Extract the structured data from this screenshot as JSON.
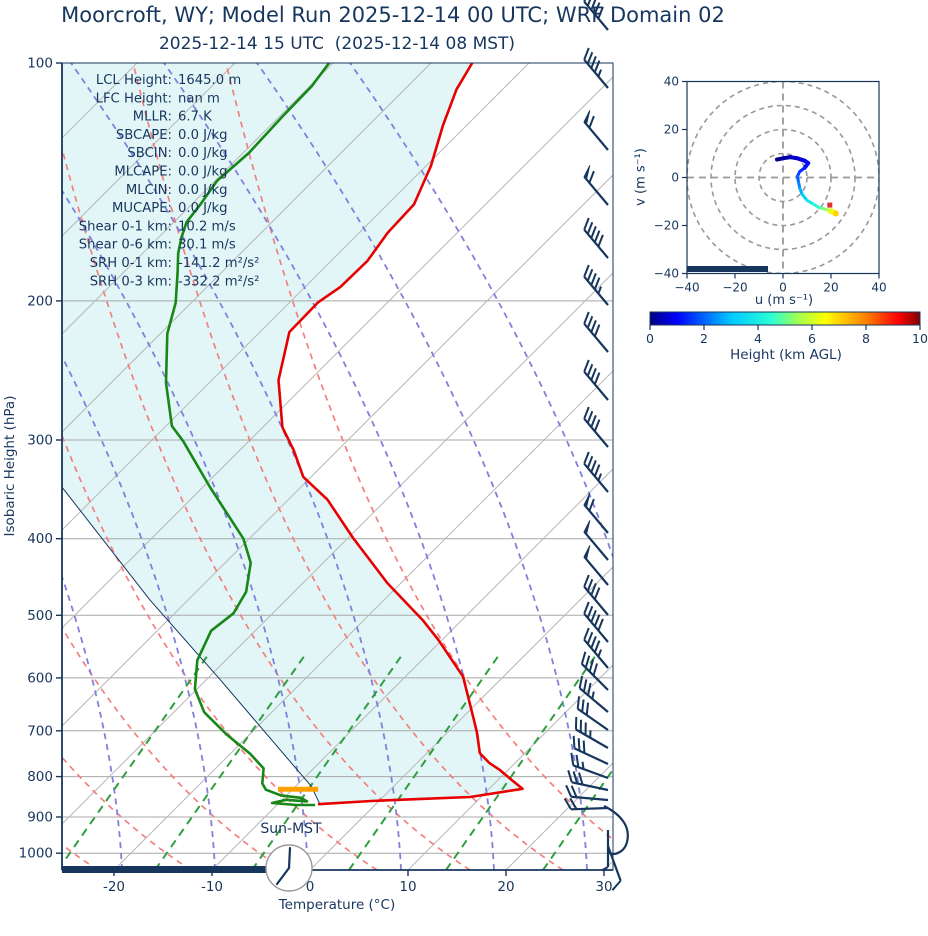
{
  "title": "Moorcroft, WY; Model Run 2025-12-14 00 UTC; WRF Domain 02",
  "subtitle": "2025-12-14 15 UTC  (2025-12-14 08 MST)",
  "colors": {
    "accent_navy": "#17365d",
    "temperature": "#e60000",
    "dewpoint": "#178717",
    "parcel": "#17365d",
    "cape_shade": "#e2f6f8",
    "dry_adiabat": "#f28080",
    "moist_adiabat": "#8080dd",
    "mixing_ratio": "#2f9e3f",
    "isotherm": "#b8b8b8",
    "grid": "#a8a8a8",
    "lcl_marker": "#ffa000",
    "hodo_grid": "#999999",
    "storm_marker": "#e03131"
  },
  "stats": [
    {
      "label": "LCL Height:",
      "value": "1645.0 m"
    },
    {
      "label": "LFC Height:",
      "value": "nan m"
    },
    {
      "label": "MLLR:",
      "value": "6.7 K"
    },
    {
      "label": "SBCAPE:",
      "value": "0.0 J/kg"
    },
    {
      "label": "SBCIN:",
      "value": "0.0 J/kg"
    },
    {
      "label": "MLCAPE:",
      "value": "0.0 J/kg"
    },
    {
      "label": "MLCIN:",
      "value": "0.0 J/kg"
    },
    {
      "label": "MUCAPE:",
      "value": "0.0 J/kg"
    },
    {
      "label": "Shear 0-1 km:",
      "value": "10.2 m/s"
    },
    {
      "label": "Shear 0-6 km:",
      "value": "30.1 m/s"
    },
    {
      "label": "SRH 0-1 km:",
      "value": "-141.2 m²/s²"
    },
    {
      "label": "SRH 0-3 km:",
      "value": "-332.2 m²/s²"
    }
  ],
  "skewt": {
    "ylabel": "Isobaric Height (hPa)",
    "xlabel": "Temperature (°C)",
    "sun_label": "Sun-MST",
    "x_ticks": [
      -20,
      -10,
      0,
      10,
      20,
      30
    ],
    "y_ticks": [
      100,
      200,
      300,
      400,
      500,
      600,
      700,
      800,
      900,
      1000
    ],
    "wind_barbs": [
      {
        "y": 30,
        "rot": -40,
        "pen": 0,
        "full": 5,
        "half": 0
      },
      {
        "y": 88,
        "rot": -40,
        "pen": 0,
        "full": 4,
        "half": 1
      },
      {
        "y": 150,
        "rot": -40,
        "pen": 1,
        "full": 1,
        "half": 0
      },
      {
        "y": 205,
        "rot": -40,
        "pen": 1,
        "full": 1,
        "half": 0
      },
      {
        "y": 258,
        "rot": -40,
        "pen": 0,
        "full": 5,
        "half": 0
      },
      {
        "y": 305,
        "rot": -40,
        "pen": 0,
        "full": 4,
        "half": 1
      },
      {
        "y": 352,
        "rot": -40,
        "pen": 0,
        "full": 4,
        "half": 0
      },
      {
        "y": 400,
        "rot": -40,
        "pen": 0,
        "full": 4,
        "half": 0
      },
      {
        "y": 447,
        "rot": -40,
        "pen": 0,
        "full": 4,
        "half": 0
      },
      {
        "y": 492,
        "rot": -40,
        "pen": 0,
        "full": 4,
        "half": 1
      },
      {
        "y": 533,
        "rot": -40,
        "pen": 1,
        "full": 1,
        "half": 0
      },
      {
        "y": 560,
        "rot": -40,
        "pen": 1,
        "full": 0,
        "half": 0
      },
      {
        "y": 585,
        "rot": -40,
        "pen": 1,
        "full": 0,
        "half": 0
      },
      {
        "y": 615,
        "rot": -40,
        "pen": 0,
        "full": 4,
        "half": 0
      },
      {
        "y": 642,
        "rot": -40,
        "pen": 0,
        "full": 5,
        "half": 0
      },
      {
        "y": 668,
        "rot": -40,
        "pen": 0,
        "full": 4,
        "half": 1
      },
      {
        "y": 690,
        "rot": -45,
        "pen": 0,
        "full": 4,
        "half": 0
      },
      {
        "y": 712,
        "rot": -50,
        "pen": 0,
        "full": 3,
        "half": 1
      },
      {
        "y": 730,
        "rot": -55,
        "pen": 0,
        "full": 3,
        "half": 0
      },
      {
        "y": 748,
        "rot": -60,
        "pen": 0,
        "full": 3,
        "half": 1
      },
      {
        "y": 764,
        "rot": -65,
        "pen": 0,
        "full": 3,
        "half": 0
      },
      {
        "y": 778,
        "rot": -70,
        "pen": 0,
        "full": 2,
        "half": 1
      },
      {
        "y": 790,
        "rot": -78,
        "pen": 0,
        "full": 3,
        "half": 0
      },
      {
        "y": 800,
        "rot": -85,
        "pen": 0,
        "full": 2,
        "half": 0
      },
      {
        "y": 808,
        "rot": -92,
        "pen": 0,
        "full": 2,
        "half": 0
      },
      {
        "y": 830,
        "rot": 180,
        "pen": 0,
        "full": 0,
        "half": 1
      },
      {
        "y": 846,
        "rot": 160,
        "pen": 0,
        "full": 1,
        "half": 0
      }
    ]
  },
  "hodograph": {
    "xlabel": "u (m s⁻¹)",
    "ylabel": "v (m s⁻¹)",
    "u_ticks": [
      -40,
      -20,
      0,
      20,
      40
    ],
    "v_ticks": [
      -40,
      -20,
      0,
      20,
      40
    ],
    "ring_radii": [
      10,
      20,
      30,
      40
    ]
  },
  "colorbar": {
    "label": "Height (km AGL)",
    "ticks": [
      0,
      2,
      4,
      6,
      8,
      10
    ],
    "range_km": [
      0,
      10
    ]
  },
  "chart_data": [
    {
      "id": "skewt-sounding",
      "type": "line",
      "title": "2025-12-14 15 UTC  (2025-12-14 08 MST)",
      "xlabel": "Temperature (°C)",
      "ylabel": "Isobaric Height (hPa)",
      "x_range_C": [
        -25,
        31
      ],
      "y_range_hPa": [
        100,
        1050
      ],
      "y_scale": "log",
      "skew_deg": 45,
      "lcl_marker": {
        "pressure_hPa": 830,
        "temp_range_C": [
          -11.5,
          -7.4
        ]
      },
      "series": [
        {
          "name": "temperature",
          "units": [
            "hPa",
            "degC"
          ],
          "points": [
            [
              100,
              -65.8
            ],
            [
              108,
              -64.7
            ],
            [
              120,
              -62.4
            ],
            [
              135,
              -59.5
            ],
            [
              151,
              -57.3
            ],
            [
              164,
              -57.1
            ],
            [
              178,
              -56.3
            ],
            [
              192,
              -56.4
            ],
            [
              201,
              -57.1
            ],
            [
              219,
              -57.0
            ],
            [
              252,
              -53.2
            ],
            [
              289,
              -48.0
            ],
            [
              309,
              -44.5
            ],
            [
              334,
              -40.8
            ],
            [
              357,
              -36.0
            ],
            [
              399,
              -29.5
            ],
            [
              455,
              -21.4
            ],
            [
              507,
              -14.0
            ],
            [
              537,
              -10.4
            ],
            [
              598,
              -4.1
            ],
            [
              678,
              1.4
            ],
            [
              705,
              3.1
            ],
            [
              747,
              5.4
            ],
            [
              769,
              7.4
            ],
            [
              785,
              9.2
            ],
            [
              808,
              11.4
            ],
            [
              829,
              13.4
            ],
            [
              849,
              8.9
            ],
            [
              853,
              5.0
            ],
            [
              859,
              -0.8
            ],
            [
              867,
              -5.9
            ]
          ]
        },
        {
          "name": "dewpoint",
          "units": [
            "hPa",
            "degC"
          ],
          "points": [
            [
              100,
              -80.4
            ],
            [
              107,
              -79.8
            ],
            [
              117,
              -79.7
            ],
            [
              130,
              -79.4
            ],
            [
              141,
              -79.8
            ],
            [
              151,
              -79.1
            ],
            [
              159,
              -78.7
            ],
            [
              166,
              -77.7
            ],
            [
              174,
              -76.4
            ],
            [
              184,
              -74.5
            ],
            [
              201,
              -71.6
            ],
            [
              220,
              -69.3
            ],
            [
              254,
              -64.4
            ],
            [
              288,
              -59.4
            ],
            [
              301,
              -56.7
            ],
            [
              344,
              -49.3
            ],
            [
              400,
              -40.6
            ],
            [
              429,
              -37.4
            ],
            [
              467,
              -34.9
            ],
            [
              497,
              -34.0
            ],
            [
              523,
              -34.5
            ],
            [
              570,
              -32.9
            ],
            [
              620,
              -30.2
            ],
            [
              663,
              -26.9
            ],
            [
              707,
              -22.4
            ],
            [
              748,
              -18.0
            ],
            [
              781,
              -15.1
            ],
            [
              816,
              -13.7
            ],
            [
              831,
              -12.7
            ],
            [
              845,
              -10.6
            ],
            [
              851,
              -8.3
            ],
            [
              860,
              -7.3
            ],
            [
              856,
              -9.6
            ],
            [
              864,
              -10.7
            ],
            [
              869,
              -8.0
            ],
            [
              869,
              -6.1
            ]
          ]
        },
        {
          "name": "parcel",
          "units": [
            "hPa",
            "degC"
          ],
          "points": [
            [
              344,
              -64.4
            ],
            [
              478,
              -43.9
            ],
            [
              603,
              -28.6
            ],
            [
              823,
              -8.4
            ],
            [
              867,
              -5.7
            ]
          ]
        }
      ]
    },
    {
      "id": "hodograph",
      "type": "line",
      "xlabel": "u (m s⁻¹)",
      "ylabel": "v (m s⁻¹)",
      "x_range": [
        -40,
        40
      ],
      "y_range": [
        -40,
        40
      ],
      "color_by": "Height (km AGL)",
      "series": [
        {
          "name": "wind-trace",
          "points_uvh": [
            [
              -2.5,
              7.5,
              0
            ],
            [
              0,
              8,
              0.2
            ],
            [
              3,
              8.5,
              0.4
            ],
            [
              6,
              8,
              0.6
            ],
            [
              9,
              7,
              0.8
            ],
            [
              10.5,
              6,
              1.0
            ],
            [
              9,
              4,
              1.2
            ],
            [
              7,
              2.5,
              1.5
            ],
            [
              6,
              0.5,
              1.8
            ],
            [
              6.5,
              -2,
              2.1
            ],
            [
              7,
              -4.5,
              2.5
            ],
            [
              8,
              -7,
              3.0
            ],
            [
              10,
              -9.5,
              3.5
            ],
            [
              12.5,
              -11,
              4.0
            ],
            [
              15,
              -12.5,
              4.5
            ],
            [
              17,
              -13,
              5.0
            ],
            [
              18.5,
              -13.5,
              5.5
            ],
            [
              20,
              -14,
              6.0
            ],
            [
              21,
              -14.5,
              6.5
            ],
            [
              22,
              -15,
              7.0
            ]
          ]
        }
      ],
      "storm_motion_uv": [
        19.5,
        -11.5
      ]
    }
  ]
}
